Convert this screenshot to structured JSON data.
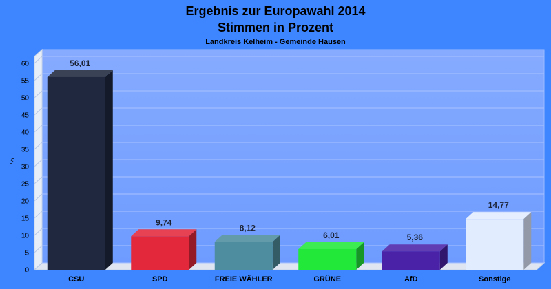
{
  "chart_data": {
    "type": "bar",
    "title": "Ergebnis zur Europawahl 2014",
    "title2": "Stimmen in Prozent",
    "subtitle": "Landkreis Kelheim - Gemeinde Hausen",
    "ylabel": "%",
    "ylim": [
      0,
      62
    ],
    "yticks": [
      0,
      5,
      10,
      15,
      20,
      25,
      30,
      35,
      40,
      45,
      50,
      55,
      60
    ],
    "categories": [
      "CSU",
      "SPD",
      "FREIE WÄHLER",
      "GRÜNE",
      "AfD",
      "Sonstige"
    ],
    "values": [
      56.01,
      9.74,
      8.12,
      6.01,
      5.36,
      14.77
    ],
    "value_labels": [
      "56,01",
      "9,74",
      "8,12",
      "6,01",
      "5,36",
      "14,77"
    ],
    "colors": [
      "#1f283f",
      "#e3283c",
      "#4e8d9f",
      "#22e83a",
      "#4a22a8",
      "#e2ecff"
    ],
    "grid": true
  }
}
